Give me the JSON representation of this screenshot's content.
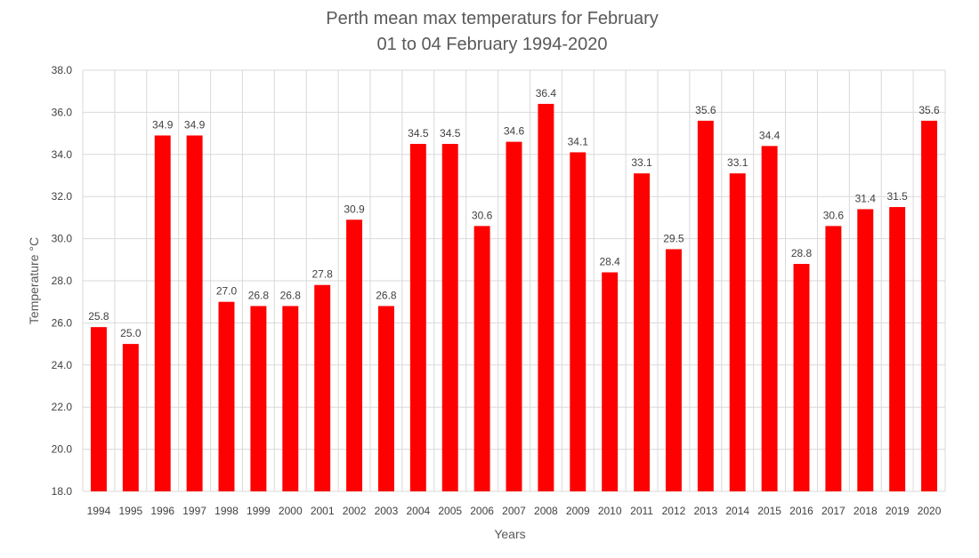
{
  "chart_data": {
    "type": "bar",
    "title": "Perth mean max temperaturs for February",
    "subtitle": "01 to 04 February 1994-2020",
    "xlabel": "Years",
    "ylabel": "Temperature °C",
    "ylim": [
      18.0,
      38.0
    ],
    "ytick_step": 2.0,
    "ytick_labels": [
      "18.0",
      "20.0",
      "22.0",
      "24.0",
      "26.0",
      "28.0",
      "30.0",
      "32.0",
      "34.0",
      "36.0",
      "38.0"
    ],
    "grid": true,
    "legend": "none",
    "bar_color": "#ff0000",
    "categories": [
      "1994",
      "1995",
      "1996",
      "1997",
      "1998",
      "1999",
      "2000",
      "2001",
      "2002",
      "2003",
      "2004",
      "2005",
      "2006",
      "2007",
      "2008",
      "2009",
      "2010",
      "2011",
      "2012",
      "2013",
      "2014",
      "2015",
      "2016",
      "2017",
      "2018",
      "2019",
      "2020"
    ],
    "values": [
      25.8,
      25.0,
      34.9,
      34.9,
      27.0,
      26.8,
      26.8,
      27.8,
      30.9,
      26.8,
      34.5,
      34.5,
      30.6,
      34.6,
      36.4,
      34.1,
      28.4,
      33.1,
      29.5,
      35.6,
      33.1,
      34.4,
      28.8,
      30.6,
      31.4,
      31.5,
      35.6
    ],
    "data_labels": [
      "25.8",
      "25.0",
      "34.9",
      "34.9",
      "27.0",
      "26.8",
      "26.8",
      "27.8",
      "30.9",
      "26.8",
      "34.5",
      "34.5",
      "30.6",
      "34.6",
      "36.4",
      "34.1",
      "28.4",
      "33.1",
      "29.5",
      "35.6",
      "33.1",
      "34.4",
      "28.8",
      "30.6",
      "31.4",
      "31.5",
      "35.6"
    ]
  }
}
